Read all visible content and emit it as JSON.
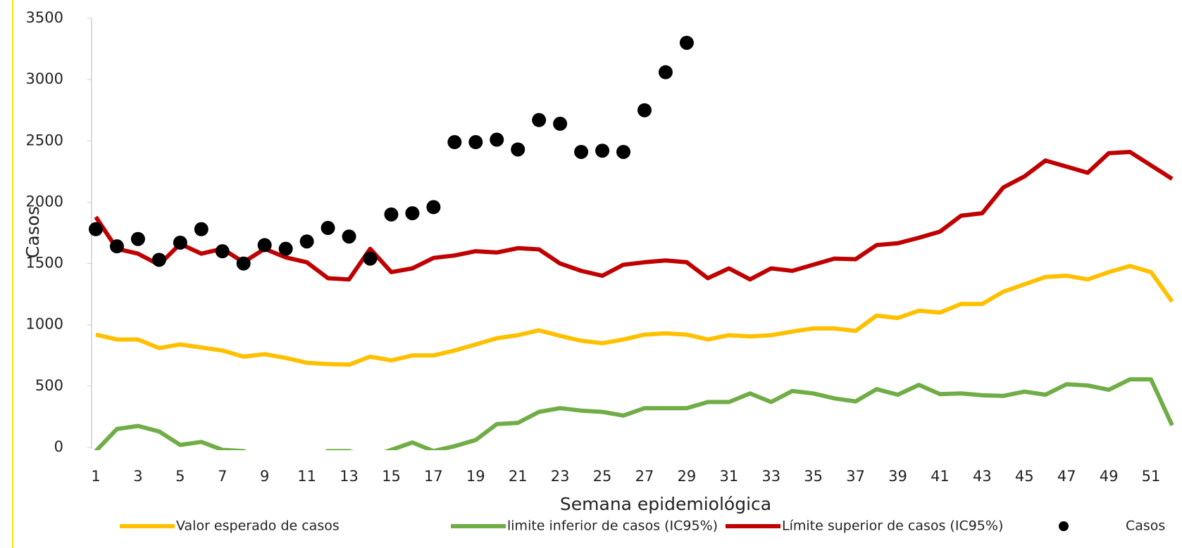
{
  "chart_data": {
    "type": "line",
    "x_label": "Semana epidemiológica",
    "y_label": "Casos",
    "x": [
      1,
      2,
      3,
      4,
      5,
      6,
      7,
      8,
      9,
      10,
      11,
      12,
      13,
      14,
      15,
      16,
      17,
      18,
      19,
      20,
      21,
      22,
      23,
      24,
      25,
      26,
      27,
      28,
      29,
      30,
      31,
      32,
      33,
      34,
      35,
      36,
      37,
      38,
      39,
      40,
      41,
      42,
      43,
      44,
      45,
      46,
      47,
      48,
      49,
      50,
      51,
      52
    ],
    "xlim": [
      1,
      52
    ],
    "xticks": [
      1,
      3,
      5,
      7,
      9,
      11,
      13,
      15,
      17,
      19,
      21,
      23,
      25,
      27,
      29,
      31,
      33,
      35,
      37,
      39,
      41,
      43,
      45,
      47,
      49,
      51
    ],
    "ylim": [
      0,
      3500
    ],
    "yticks": [
      0,
      500,
      1000,
      1500,
      2000,
      2500,
      3000,
      3500
    ],
    "series": [
      {
        "name": "Valor esperado de casos",
        "kind": "line",
        "color": "#FFC000",
        "values": [
          920,
          880,
          880,
          810,
          840,
          815,
          790,
          740,
          760,
          730,
          690,
          680,
          675,
          740,
          710,
          750,
          750,
          790,
          840,
          890,
          915,
          955,
          910,
          870,
          850,
          880,
          920,
          930,
          920,
          880,
          915,
          905,
          915,
          945,
          970,
          970,
          950,
          1075,
          1055,
          1115,
          1100,
          1170,
          1170,
          1270,
          1330,
          1390,
          1400,
          1370,
          1430,
          1480,
          1430,
          1190
        ]
      },
      {
        "name": "limite inferior de casos (IC95%)",
        "kind": "line",
        "color": "#70AD47",
        "values": [
          -30,
          150,
          175,
          130,
          20,
          45,
          -20,
          -30,
          -100,
          -100,
          -100,
          -30,
          -30,
          -80,
          -20,
          40,
          -30,
          10,
          60,
          190,
          200,
          290,
          320,
          300,
          290,
          260,
          320,
          320,
          320,
          370,
          370,
          440,
          370,
          460,
          440,
          400,
          375,
          475,
          430,
          510,
          435,
          440,
          425,
          420,
          455,
          430,
          515,
          505,
          470,
          555,
          555,
          180
        ]
      },
      {
        "name": "Límite superior de casos (IC95%)",
        "kind": "line",
        "color": "#C00000",
        "values": [
          1880,
          1620,
          1580,
          1490,
          1660,
          1580,
          1620,
          1510,
          1620,
          1550,
          1510,
          1380,
          1370,
          1620,
          1430,
          1460,
          1545,
          1565,
          1600,
          1590,
          1625,
          1615,
          1500,
          1440,
          1400,
          1490,
          1510,
          1525,
          1510,
          1380,
          1460,
          1370,
          1460,
          1440,
          1490,
          1540,
          1535,
          1650,
          1665,
          1710,
          1760,
          1890,
          1910,
          2120,
          2210,
          2340,
          2290,
          2240,
          2400,
          2410,
          2300,
          2190
        ]
      },
      {
        "name": "Casos",
        "kind": "scatter",
        "color": "#000000",
        "values": [
          1780,
          1640,
          1700,
          1530,
          1670,
          1780,
          1600,
          1500,
          1650,
          1620,
          1680,
          1790,
          1720,
          1540,
          1900,
          1910,
          1960,
          2490,
          2490,
          2510,
          2430,
          2670,
          2640,
          2410,
          2420,
          2410,
          2750,
          3060,
          3300,
          null,
          null,
          null,
          null,
          null,
          null,
          null,
          null,
          null,
          null,
          null,
          null,
          null,
          null,
          null,
          null,
          null,
          null,
          null,
          null,
          null,
          null,
          null
        ]
      }
    ]
  }
}
